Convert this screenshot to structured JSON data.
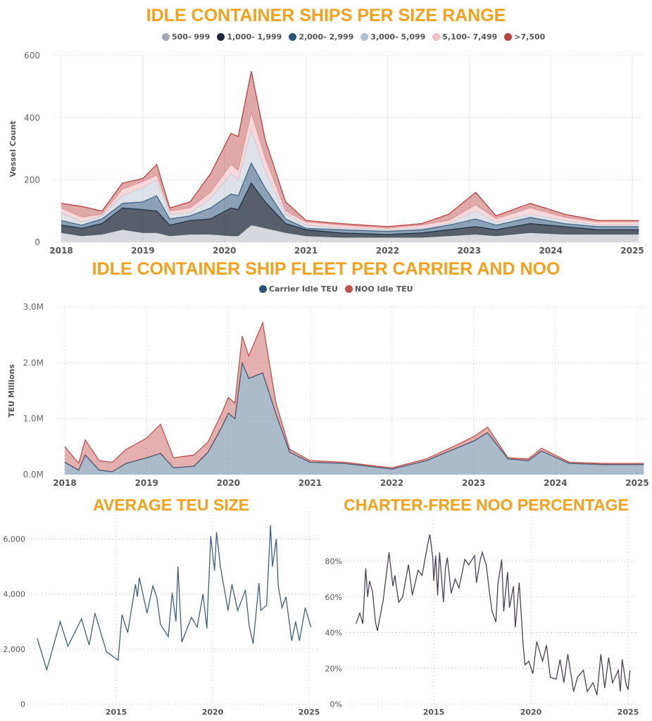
{
  "chart_data": [
    {
      "type": "area",
      "stacked": true,
      "title": "IDLE CONTAINER SHIPS PER SIZE RANGE",
      "ylabel": "Vessel Count",
      "ylim": [
        0,
        600
      ],
      "yticks": [
        "0",
        "200",
        "400",
        "600"
      ],
      "xticks": [
        "2018",
        "2019",
        "2020",
        "2021",
        "2022",
        "2023",
        "2024",
        "2025"
      ],
      "legend_position": "top",
      "grid": true,
      "x": [
        2018.0,
        2018.25,
        2018.5,
        2018.75,
        2019.0,
        2019.17,
        2019.33,
        2019.58,
        2019.83,
        2020.08,
        2020.17,
        2020.33,
        2020.5,
        2020.75,
        2021.0,
        2021.42,
        2022.0,
        2022.42,
        2022.75,
        2023.08,
        2023.33,
        2023.75,
        2024.17,
        2024.58,
        2025.08
      ],
      "series": [
        {
          "name": "500- 999",
          "color": "#a3a9b3",
          "values": [
            30,
            20,
            25,
            40,
            30,
            30,
            20,
            25,
            25,
            20,
            20,
            55,
            45,
            30,
            20,
            15,
            15,
            15,
            20,
            25,
            20,
            30,
            25,
            25,
            25
          ]
        },
        {
          "name": "1,000- 1,999",
          "color": "#1e2a3a",
          "values": [
            25,
            25,
            35,
            70,
            75,
            70,
            35,
            45,
            50,
            90,
            85,
            135,
            85,
            30,
            20,
            15,
            10,
            15,
            20,
            25,
            20,
            30,
            25,
            15,
            15
          ]
        },
        {
          "name": "2,000- 2,999",
          "color": "#2d5478",
          "values": [
            15,
            10,
            15,
            15,
            25,
            50,
            20,
            15,
            35,
            45,
            45,
            65,
            45,
            15,
            5,
            10,
            10,
            10,
            15,
            25,
            15,
            20,
            10,
            10,
            10
          ]
        },
        {
          "name": "3,000- 5,099",
          "color": "#b4c2cf",
          "values": [
            25,
            10,
            10,
            25,
            45,
            50,
            15,
            10,
            30,
            65,
            50,
            105,
            55,
            15,
            10,
            5,
            5,
            5,
            5,
            25,
            10,
            10,
            10,
            5,
            5
          ]
        },
        {
          "name": "5,100- 7,499",
          "color": "#f4c0c3",
          "values": [
            15,
            15,
            5,
            20,
            20,
            15,
            10,
            15,
            20,
            30,
            30,
            55,
            40,
            10,
            10,
            10,
            5,
            10,
            10,
            20,
            10,
            20,
            10,
            10,
            10
          ]
        },
        {
          "name": ">7,500",
          "color": "#b9403f",
          "values": [
            15,
            35,
            10,
            20,
            10,
            35,
            10,
            20,
            60,
            100,
            110,
            135,
            60,
            30,
            5,
            5,
            5,
            5,
            20,
            40,
            10,
            15,
            10,
            5,
            5
          ]
        }
      ]
    },
    {
      "type": "area",
      "stacked": true,
      "title": "IDLE CONTAINER SHIP FLEET PER CARRIER AND NOO",
      "ylabel": "TEU Millions",
      "ylim": [
        0,
        3000000
      ],
      "yticks": [
        "0.0M",
        "1.0M",
        "2.0M",
        "3.0M"
      ],
      "xticks": [
        "2018",
        "2019",
        "2020",
        "2021",
        "2022",
        "2023",
        "2024",
        "2025"
      ],
      "legend_position": "top",
      "grid": true,
      "x": [
        2018.0,
        2018.17,
        2018.25,
        2018.42,
        2018.58,
        2018.75,
        2019.0,
        2019.17,
        2019.33,
        2019.58,
        2019.75,
        2019.92,
        2020.0,
        2020.08,
        2020.17,
        2020.25,
        2020.42,
        2020.58,
        2020.75,
        2021.0,
        2021.42,
        2022.0,
        2022.42,
        2022.75,
        2023.0,
        2023.17,
        2023.42,
        2023.67,
        2023.83,
        2024.17,
        2024.58,
        2025.08
      ],
      "series": [
        {
          "name": "Carrier Idle TEU",
          "color": "#2d5478",
          "values": [
            220000,
            80000,
            350000,
            80000,
            50000,
            200000,
            300000,
            380000,
            120000,
            150000,
            400000,
            850000,
            1100000,
            1000000,
            2000000,
            1720000,
            1820000,
            1100000,
            400000,
            220000,
            200000,
            100000,
            250000,
            450000,
            600000,
            750000,
            280000,
            250000,
            420000,
            200000,
            180000,
            180000
          ]
        },
        {
          "name": "NOO Idle TEU",
          "color": "#c0504d",
          "values": [
            280000,
            120000,
            270000,
            170000,
            170000,
            250000,
            350000,
            520000,
            180000,
            200000,
            180000,
            250000,
            280000,
            280000,
            480000,
            400000,
            900000,
            200000,
            50000,
            30000,
            20000,
            20000,
            30000,
            50000,
            80000,
            100000,
            20000,
            30000,
            50000,
            20000,
            20000,
            20000
          ]
        }
      ]
    },
    {
      "type": "line",
      "title": "AVERAGE TEU SIZE",
      "ylim": [
        0,
        6500
      ],
      "yticks": [
        "0",
        "2,000",
        "4,000",
        "6,000"
      ],
      "xticks": [
        "2015",
        "2020",
        "2025"
      ],
      "grid": true,
      "color": "#3c5f80",
      "x": [
        2010.9,
        2011.4,
        2012.1,
        2012.5,
        2013.2,
        2013.6,
        2013.9,
        2014.5,
        2015.1,
        2015.3,
        2015.6,
        2016.0,
        2016.1,
        2016.2,
        2016.6,
        2016.9,
        2017.1,
        2017.3,
        2017.7,
        2017.9,
        2018.1,
        2018.2,
        2018.4,
        2018.9,
        2019.2,
        2019.5,
        2019.7,
        2019.9,
        2020.1,
        2020.2,
        2020.4,
        2020.8,
        2021.0,
        2021.3,
        2021.7,
        2021.9,
        2022.1,
        2022.4,
        2022.5,
        2022.8,
        2023.0,
        2023.1,
        2023.3,
        2023.4,
        2023.6,
        2023.8,
        2024.1,
        2024.3,
        2024.5,
        2024.8,
        2025.1
      ],
      "values": [
        2400,
        1250,
        3000,
        2100,
        3100,
        2150,
        3300,
        1900,
        1600,
        3250,
        2600,
        4350,
        3900,
        4600,
        3300,
        4300,
        3900,
        2900,
        2450,
        4050,
        3000,
        5000,
        2250,
        3150,
        2800,
        4000,
        2750,
        6100,
        4850,
        6250,
        5000,
        3400,
        4350,
        3400,
        4150,
        2800,
        2200,
        4400,
        3400,
        3600,
        6500,
        5000,
        6000,
        4300,
        3500,
        3900,
        2300,
        3000,
        2300,
        3500,
        2800
      ]
    },
    {
      "type": "line",
      "title": "CHARTER-FREE NOO PERCENTAGE",
      "ylim": [
        0,
        95
      ],
      "yticks": [
        "0%",
        "20%",
        "40%",
        "60%",
        "80%"
      ],
      "xticks": [
        "2015",
        "2020",
        "2025"
      ],
      "grid": true,
      "color": "#4a4058",
      "x": [
        2011.0,
        2011.2,
        2011.35,
        2011.5,
        2011.6,
        2011.7,
        2011.85,
        2012.0,
        2012.1,
        2012.4,
        2012.7,
        2012.9,
        2013.0,
        2013.2,
        2013.4,
        2013.7,
        2013.9,
        2014.2,
        2014.4,
        2014.7,
        2014.8,
        2014.95,
        2015.0,
        2015.1,
        2015.2,
        2015.3,
        2015.5,
        2015.6,
        2015.7,
        2015.9,
        2016.1,
        2016.3,
        2016.6,
        2016.8,
        2017.1,
        2017.2,
        2017.4,
        2017.5,
        2017.7,
        2017.9,
        2018.0,
        2018.2,
        2018.3,
        2018.5,
        2018.6,
        2018.8,
        2018.9,
        2019.1,
        2019.2,
        2019.4,
        2019.6,
        2019.7,
        2019.9,
        2020.1,
        2020.3,
        2020.6,
        2020.8,
        2021.0,
        2021.3,
        2021.5,
        2021.7,
        2021.9,
        2022.2,
        2022.4,
        2022.7,
        2022.9,
        2023.2,
        2023.4,
        2023.6,
        2023.8,
        2024.0,
        2024.2,
        2024.5,
        2024.6,
        2024.7,
        2024.9,
        2025.0,
        2025.1
      ],
      "values": [
        45,
        51,
        45,
        76,
        60,
        69,
        63,
        46,
        41,
        58,
        85,
        66,
        72,
        57,
        60,
        78,
        61,
        75,
        72,
        90,
        95,
        82,
        69,
        83,
        61,
        85,
        57,
        76,
        82,
        62,
        70,
        65,
        81,
        78,
        83,
        68,
        81,
        85,
        78,
        60,
        52,
        46,
        67,
        81,
        52,
        74,
        54,
        66,
        43,
        68,
        33,
        22,
        24,
        17,
        35,
        24,
        33,
        15,
        14,
        25,
        12,
        28,
        7,
        15,
        19,
        7,
        12,
        5,
        28,
        9,
        26,
        12,
        19,
        7,
        25,
        11,
        8,
        19
      ]
    }
  ]
}
